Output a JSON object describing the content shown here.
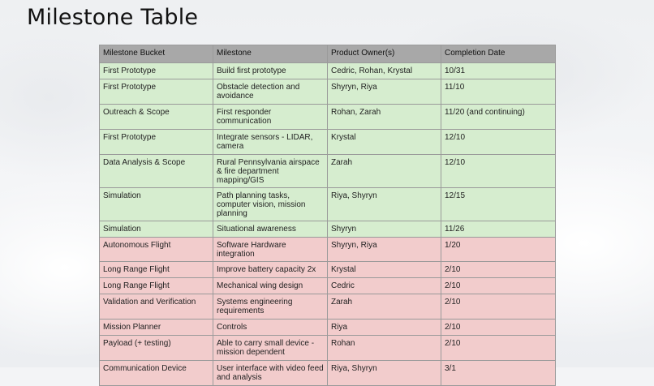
{
  "slide": {
    "title": "Milestone Table"
  },
  "table": {
    "headers": [
      "Milestone Bucket",
      "Milestone",
      "Product Owner(s)",
      "Completion Date"
    ],
    "rows": [
      {
        "bucket": "First Prototype",
        "milestone": "Build first prototype",
        "owners": "Cedric, Rohan, Krystal",
        "date": "10/31",
        "status": "green"
      },
      {
        "bucket": "First Prototype",
        "milestone": "Obstacle detection and avoidance",
        "owners": "Shyryn, Riya",
        "date": "11/10",
        "status": "green"
      },
      {
        "bucket": "Outreach & Scope",
        "milestone": "First responder communication",
        "owners": "Rohan, Zarah",
        "date": "11/20 (and continuing)",
        "status": "green"
      },
      {
        "bucket": "First Prototype",
        "milestone": "Integrate sensors - LIDAR, camera",
        "owners": "Krystal",
        "date": "12/10",
        "status": "green"
      },
      {
        "bucket": "Data Analysis & Scope",
        "milestone": "Rural Pennsylvania airspace & fire department mapping/GIS",
        "owners": "Zarah",
        "date": "12/10",
        "status": "green"
      },
      {
        "bucket": "Simulation",
        "milestone": "Path planning tasks, computer vision, mission planning",
        "owners": "Riya, Shyryn",
        "date": "12/15",
        "status": "green"
      },
      {
        "bucket": "Simulation",
        "milestone": "Situational awareness",
        "owners": "Shyryn",
        "date": "11/26",
        "status": "green"
      },
      {
        "bucket": "Autonomous Flight",
        "milestone": "Software Hardware integration",
        "owners": "Shyryn, Riya",
        "date": "1/20",
        "status": "red"
      },
      {
        "bucket": "Long Range Flight",
        "milestone": "Improve battery capacity 2x",
        "owners": "Krystal",
        "date": "2/10",
        "status": "red"
      },
      {
        "bucket": "Long Range Flight",
        "milestone": "Mechanical wing design",
        "owners": "Cedric",
        "date": "2/10",
        "status": "red"
      },
      {
        "bucket": "Validation and Verification",
        "milestone": "Systems engineering requirements",
        "owners": "Zarah",
        "date": "2/10",
        "status": "red"
      },
      {
        "bucket": "Mission Planner",
        "milestone": "Controls",
        "owners": "Riya",
        "date": "2/10",
        "status": "red"
      },
      {
        "bucket": "Payload (+ testing)",
        "milestone": "Able to carry small device - mission dependent",
        "owners": "Rohan",
        "date": "2/10",
        "status": "red"
      },
      {
        "bucket": "Communication Device",
        "milestone": "User interface with video feed and analysis",
        "owners": "Riya, Shyryn",
        "date": "3/1",
        "status": "red"
      }
    ]
  },
  "colors": {
    "green_row": "#d6edcf",
    "red_row": "#f2cccc",
    "header": "#a8a8a8",
    "border": "#9a9a9a"
  }
}
